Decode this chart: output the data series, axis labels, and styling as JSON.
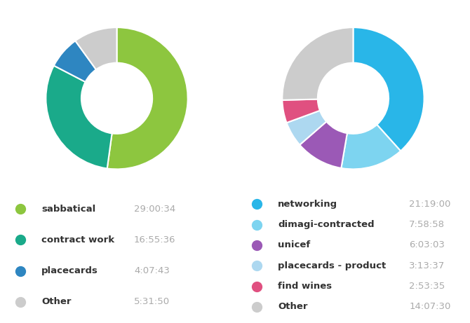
{
  "chart1": {
    "labels": [
      "sabbatical",
      "contract work",
      "placecards",
      "Other"
    ],
    "times": [
      "29:00:34",
      "16:55:36",
      "4:07:43",
      "5:31:50"
    ],
    "seconds": [
      104434,
      60936,
      14863,
      19910
    ],
    "colors": [
      "#8dc63f",
      "#1aaa8a",
      "#2e86c1",
      "#cccccc"
    ]
  },
  "chart2": {
    "labels": [
      "networking",
      "dimagi-contracted",
      "unicef",
      "placecards - product",
      "find wines",
      "Other"
    ],
    "times": [
      "21:19:00",
      "7:58:58",
      "6:03:03",
      "3:13:37",
      "2:53:35",
      "14:07:30"
    ],
    "seconds": [
      76740,
      28738,
      21783,
      11617,
      10415,
      50850
    ],
    "colors": [
      "#29b6e8",
      "#7dd4f0",
      "#9b59b6",
      "#add8f0",
      "#e05080",
      "#cccccc"
    ]
  },
  "background": "#ffffff",
  "label_color": "#333333",
  "time_color": "#aaaaaa",
  "label_fontsize": 9.5,
  "time_fontsize": 9.5,
  "dot_fontsize": 14
}
